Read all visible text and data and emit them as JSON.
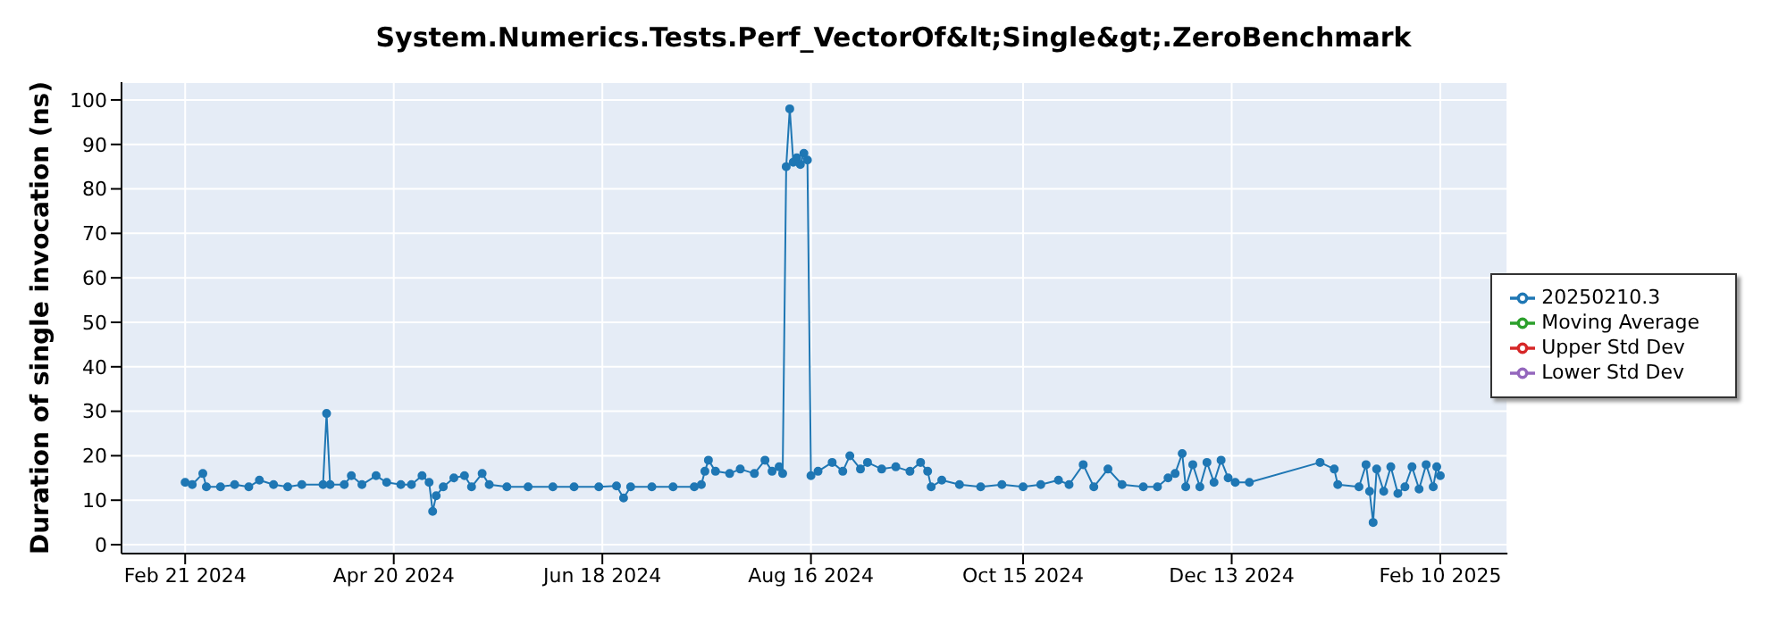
{
  "chart_data": {
    "type": "line",
    "title": "System.Numerics.Tests.Perf_VectorOf&lt;Single&gt;.ZeroBenchmark",
    "ylabel": "Duration of single invocation (ns)",
    "x": [
      "2024-02-21",
      "2024-02-23",
      "2024-02-26",
      "2024-02-27",
      "2024-03-02",
      "2024-03-06",
      "2024-03-10",
      "2024-03-13",
      "2024-03-17",
      "2024-03-21",
      "2024-03-25",
      "2024-03-31",
      "2024-04-01",
      "2024-04-02",
      "2024-04-06",
      "2024-04-08",
      "2024-04-11",
      "2024-04-15",
      "2024-04-18",
      "2024-04-22",
      "2024-04-25",
      "2024-04-28",
      "2024-04-30",
      "2024-05-01",
      "2024-05-02",
      "2024-05-04",
      "2024-05-07",
      "2024-05-10",
      "2024-05-12",
      "2024-05-15",
      "2024-05-17",
      "2024-05-22",
      "2024-05-28",
      "2024-06-04",
      "2024-06-10",
      "2024-06-17",
      "2024-06-22",
      "2024-06-24",
      "2024-06-26",
      "2024-07-02",
      "2024-07-08",
      "2024-07-14",
      "2024-07-16",
      "2024-07-17",
      "2024-07-18",
      "2024-07-20",
      "2024-07-24",
      "2024-07-27",
      "2024-07-31",
      "2024-08-03",
      "2024-08-05",
      "2024-08-07",
      "2024-08-08",
      "2024-08-09",
      "2024-08-10",
      "2024-08-11",
      "2024-08-12",
      "2024-08-13",
      "2024-08-14",
      "2024-08-15",
      "2024-08-16",
      "2024-08-18",
      "2024-08-22",
      "2024-08-25",
      "2024-08-27",
      "2024-08-30",
      "2024-09-01",
      "2024-09-05",
      "2024-09-09",
      "2024-09-13",
      "2024-09-16",
      "2024-09-18",
      "2024-09-19",
      "2024-09-22",
      "2024-09-27",
      "2024-10-03",
      "2024-10-09",
      "2024-10-15",
      "2024-10-20",
      "2024-10-25",
      "2024-10-28",
      "2024-11-01",
      "2024-11-04",
      "2024-11-08",
      "2024-11-12",
      "2024-11-18",
      "2024-11-22",
      "2024-11-25",
      "2024-11-27",
      "2024-11-29",
      "2024-11-30",
      "2024-12-02",
      "2024-12-04",
      "2024-12-06",
      "2024-12-08",
      "2024-12-10",
      "2024-12-12",
      "2024-12-14",
      "2024-12-18",
      "2025-01-07",
      "2025-01-11",
      "2025-01-12",
      "2025-01-18",
      "2025-01-20",
      "2025-01-21",
      "2025-01-22",
      "2025-01-23",
      "2025-01-25",
      "2025-01-27",
      "2025-01-29",
      "2025-01-31",
      "2025-02-02",
      "2025-02-04",
      "2025-02-06",
      "2025-02-08",
      "2025-02-09",
      "2025-02-10"
    ],
    "series": [
      {
        "name": "20250210.3",
        "color": "#1f77b4",
        "values": [
          14,
          13.5,
          16,
          13,
          13,
          13.5,
          13,
          14.5,
          13.5,
          13,
          13.5,
          13.5,
          29.5,
          13.5,
          13.5,
          15.5,
          13.5,
          15.5,
          14,
          13.5,
          13.5,
          15.5,
          14,
          7.5,
          11,
          13,
          15,
          15.5,
          13,
          16,
          13.5,
          13,
          13,
          13,
          13,
          13,
          13.2,
          10.5,
          13,
          13,
          13,
          13,
          13.5,
          16.5,
          19,
          16.5,
          16,
          17,
          16,
          19,
          16.5,
          17.5,
          16,
          85,
          98,
          86,
          87,
          85.5,
          88,
          86.5,
          15.5,
          16.5,
          18.5,
          16.5,
          20,
          17,
          18.5,
          17,
          17.5,
          16.5,
          18.5,
          16.5,
          13,
          14.5,
          13.5,
          13,
          13.5,
          13,
          13.5,
          14.5,
          13.5,
          18,
          13,
          17,
          13.5,
          13,
          13,
          15,
          16,
          20.5,
          13,
          18,
          13,
          18.5,
          14,
          19,
          15,
          14,
          14,
          18.5,
          17,
          13.5,
          13,
          18,
          12,
          5,
          17,
          12,
          17.5,
          11.5,
          13,
          17.5,
          12.5,
          18,
          13,
          17.5,
          15.5
        ]
      },
      {
        "name": "Moving Average",
        "color": "#2ca02c",
        "values": [
          null,
          null,
          null,
          null,
          null,
          null,
          null,
          null,
          null,
          null,
          null,
          null,
          null,
          null,
          null,
          null,
          null,
          null,
          null,
          null,
          null,
          null,
          null,
          null,
          null,
          null,
          null,
          null,
          null,
          null,
          null,
          null,
          null,
          null,
          null,
          null,
          null,
          null,
          null,
          null,
          null,
          null,
          null,
          null,
          null,
          null,
          null,
          null,
          null,
          null,
          null,
          null,
          null,
          null,
          null,
          null,
          null,
          null,
          null,
          null,
          null,
          null,
          null,
          null,
          null,
          null,
          null,
          null,
          null,
          null,
          null,
          null,
          null,
          null,
          null,
          null,
          null,
          null,
          null,
          null,
          null,
          null,
          null,
          null,
          null,
          null,
          null,
          null,
          null,
          null,
          null,
          null,
          null,
          null,
          null,
          null,
          null,
          null,
          null,
          null,
          null,
          null,
          null,
          null,
          null,
          null,
          null,
          null,
          null,
          null,
          null,
          null,
          null,
          null,
          null,
          null,
          null
        ]
      },
      {
        "name": "Upper Std Dev",
        "color": "#d62728",
        "values": [
          null,
          null,
          null,
          null,
          null,
          null,
          null,
          null,
          null,
          null,
          null,
          null,
          null,
          null,
          null,
          null,
          null,
          null,
          null,
          null,
          null,
          null,
          null,
          null,
          null,
          null,
          null,
          null,
          null,
          null,
          null,
          null,
          null,
          null,
          null,
          null,
          null,
          null,
          null,
          null,
          null,
          null,
          null,
          null,
          null,
          null,
          null,
          null,
          null,
          null,
          null,
          null,
          null,
          null,
          null,
          null,
          null,
          null,
          null,
          null,
          null,
          null,
          null,
          null,
          null,
          null,
          null,
          null,
          null,
          null,
          null,
          null,
          null,
          null,
          null,
          null,
          null,
          null,
          null,
          null,
          null,
          null,
          null,
          null,
          null,
          null,
          null,
          null,
          null,
          null,
          null,
          null,
          null,
          null,
          null,
          null,
          null,
          null,
          null,
          null,
          null,
          null,
          null,
          null,
          null,
          null,
          null,
          null,
          null,
          null,
          null,
          null,
          null,
          null,
          null,
          null,
          null
        ]
      },
      {
        "name": "Lower Std Dev",
        "color": "#9467bd",
        "values": [
          null,
          null,
          null,
          null,
          null,
          null,
          null,
          null,
          null,
          null,
          null,
          null,
          null,
          null,
          null,
          null,
          null,
          null,
          null,
          null,
          null,
          null,
          null,
          null,
          null,
          null,
          null,
          null,
          null,
          null,
          null,
          null,
          null,
          null,
          null,
          null,
          null,
          null,
          null,
          null,
          null,
          null,
          null,
          null,
          null,
          null,
          null,
          null,
          null,
          null,
          null,
          null,
          null,
          null,
          null,
          null,
          null,
          null,
          null,
          null,
          null,
          null,
          null,
          null,
          null,
          null,
          null,
          null,
          null,
          null,
          null,
          null,
          null,
          null,
          null,
          null,
          null,
          null,
          null,
          null,
          null,
          null,
          null,
          null,
          null,
          null,
          null,
          null,
          null,
          null,
          null,
          null,
          null,
          null,
          null,
          null,
          null,
          null,
          null,
          null,
          null,
          null,
          null,
          null,
          null,
          null,
          null,
          null,
          null,
          null,
          null,
          null,
          null,
          null,
          null,
          null,
          null
        ]
      }
    ],
    "xlim": [
      "2024-02-03",
      "2025-03-01"
    ],
    "xticks": [
      {
        "value": "2024-02-21",
        "label": "Feb 21 2024"
      },
      {
        "value": "2024-04-20",
        "label": "Apr 20 2024"
      },
      {
        "value": "2024-06-18",
        "label": "Jun 18 2024"
      },
      {
        "value": "2024-08-16",
        "label": "Aug 16 2024"
      },
      {
        "value": "2024-10-15",
        "label": "Oct 15 2024"
      },
      {
        "value": "2024-12-13",
        "label": "Dec 13 2024"
      },
      {
        "value": "2025-02-10",
        "label": "Feb 10 2025"
      }
    ],
    "ylim": [
      -2,
      104
    ],
    "yticks": [
      0,
      10,
      20,
      30,
      40,
      50,
      60,
      70,
      80,
      90,
      100
    ],
    "grid": true,
    "legend": "right",
    "marker": "circle",
    "line_style": "solid"
  }
}
